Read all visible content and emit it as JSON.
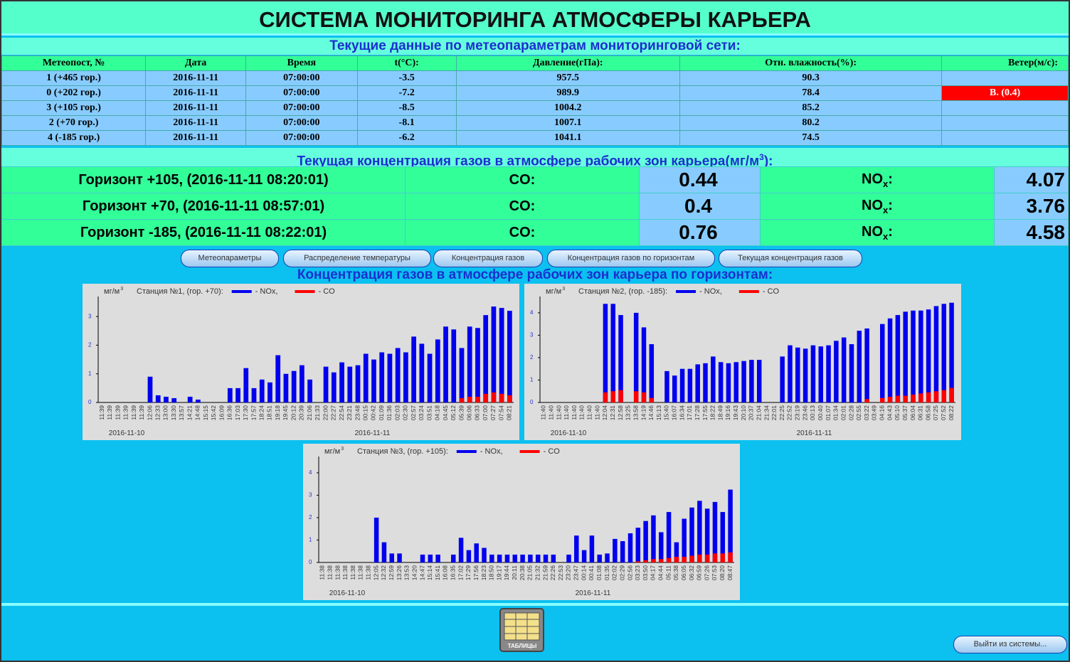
{
  "title": "СИСТЕМА МОНИТОРИНГА АТМОСФЕРЫ КАРЬЕРА",
  "meteo": {
    "heading": "Текущие данные по метеопараметрам мониторинговой сети:",
    "headers": [
      "Метеопост, №",
      "Дата",
      "Время",
      "t(°C):",
      "Давление(гПа):",
      "Отн. влажность(%):",
      "Ветер(м/с):"
    ],
    "rows": [
      {
        "cells": [
          "1 (+465 гор.)",
          "2016-11-11",
          "07:00:00",
          -3.5,
          957.5,
          90.3
        ]
      },
      {
        "cells": [
          "0 (+202 гор.)",
          "2016-11-11",
          "07:00:00",
          -7.2,
          989.9,
          78.4
        ],
        "wind": "В. (0.4)"
      },
      {
        "cells": [
          "3 (+105 гор.)",
          "2016-11-11",
          "07:00:00",
          -8.5,
          1004.2,
          85.2
        ]
      },
      {
        "cells": [
          "2 (+70 гор.)",
          "2016-11-11",
          "07:00:00",
          -8.1,
          1007.1,
          80.2
        ]
      },
      {
        "cells": [
          "4 (-185 гор.)",
          "2016-11-11",
          "07:00:00",
          -6.2,
          1041.1,
          74.5
        ]
      }
    ]
  },
  "gas": {
    "heading": "Текущая концентрация газов в атмосфере рабочих зон карьера(мг/м",
    "heading_sup": "3",
    "heading_end": "):",
    "co_label": "CO:",
    "nox_label": "NO",
    "nox_sub": "x",
    "nox_colon": ":",
    "rows": [
      {
        "label": "Горизонт +105, (2016-11-11 08:20:01)",
        "co": 0.44,
        "nox": 4.07
      },
      {
        "label": "Горизонт +70, (2016-11-11 08:57:01)",
        "co": 0.4,
        "nox": 3.76
      },
      {
        "label": "Горизонт -185, (2016-11-11 08:22:01)",
        "co": 0.76,
        "nox": 4.58
      }
    ]
  },
  "buttons": [
    "Метеопараметры",
    "Распределение температуры",
    "Концентрация газов",
    "Концентрация газов по горизонтам",
    "Текущая концентрация газов"
  ],
  "charts_heading": "Концентрация газов в атмосфере рабочих зон карьера по горизонтам:",
  "charts": [
    {
      "type": "bar",
      "unit": "мг/м",
      "unit_sup": "3",
      "station": "Станция №1, (гор. +70):",
      "ylim": [
        0,
        3.6
      ],
      "yticks": [
        0,
        1,
        2,
        3
      ],
      "dates": [
        "2016-11-10",
        "2016-11-11"
      ],
      "categories": [
        "11:39",
        "11:39",
        "11:39",
        "11:39",
        "11:39",
        "11:39",
        "12:06",
        "12:33",
        "13:00",
        "13:30",
        "13:57",
        "14:21",
        "14:48",
        "15:15",
        "15:42",
        "16:09",
        "16:36",
        "17:03",
        "17:30",
        "17:57",
        "18:24",
        "18:51",
        "19:18",
        "19:45",
        "20:12",
        "20:39",
        "21:06",
        "21:33",
        "22:00",
        "22:27",
        "22:54",
        "23:21",
        "23:48",
        "00:15",
        "00:42",
        "01:09",
        "01:36",
        "02:03",
        "02:30",
        "02:57",
        "03:24",
        "03:51",
        "04:18",
        "04:45",
        "05:12",
        "05:39",
        "06:06",
        "06:33",
        "07:00",
        "07:27",
        "07:54",
        "08:21"
      ],
      "series": [
        {
          "name": "- NOx,",
          "color": "#0000ee",
          "values": [
            0,
            0,
            0,
            0,
            0,
            0,
            0.9,
            0.25,
            0.2,
            0.15,
            0,
            0.2,
            0.1,
            0,
            0,
            0,
            0.5,
            0.5,
            1.2,
            0.5,
            0.8,
            0.7,
            1.65,
            1.0,
            1.1,
            1.3,
            0.8,
            0,
            1.25,
            1.05,
            1.4,
            1.25,
            1.3,
            1.7,
            1.5,
            1.75,
            1.7,
            1.9,
            1.75,
            2.3,
            2.05,
            1.7,
            2.2,
            2.65,
            2.55,
            1.9,
            2.65,
            2.6,
            3.05,
            3.35,
            3.3,
            3.2
          ]
        },
        {
          "name": "- CO",
          "color": "#ff0000",
          "values": [
            0,
            0,
            0,
            0,
            0,
            0,
            0,
            0,
            0,
            0,
            0,
            0,
            0,
            0,
            0,
            0,
            0,
            0,
            0,
            0,
            0,
            0,
            0,
            0,
            0,
            0,
            0,
            0,
            0,
            0,
            0,
            0,
            0,
            0,
            0,
            0,
            0,
            0,
            0,
            0,
            0,
            0,
            0,
            0,
            0,
            0.15,
            0.2,
            0.2,
            0.3,
            0.35,
            0.3,
            0.25
          ]
        }
      ]
    },
    {
      "type": "bar",
      "unit": "мг/м",
      "unit_sup": "3",
      "station": "Станция №2, (гор. -185):",
      "ylim": [
        0,
        4.6
      ],
      "yticks": [
        0,
        1,
        2,
        3,
        4
      ],
      "dates": [
        "2016-11-10",
        "2016-11-11"
      ],
      "categories": [
        "11:40",
        "11:40",
        "11:40",
        "11:40",
        "11:40",
        "11:40",
        "11:40",
        "11:40",
        "12:04",
        "12:31",
        "12:58",
        "13:25",
        "13:58",
        "14:19",
        "14:46",
        "15:13",
        "15:40",
        "16:07",
        "16:34",
        "17:01",
        "17:28",
        "17:55",
        "18:22",
        "18:49",
        "19:16",
        "19:43",
        "20:10",
        "20:37",
        "21:04",
        "21:34",
        "22:01",
        "22:25",
        "22:52",
        "23:19",
        "23:46",
        "00:13",
        "00:40",
        "01:07",
        "01:34",
        "02:01",
        "02:28",
        "02:55",
        "03:22",
        "03:49",
        "04:16",
        "04:43",
        "05:10",
        "05:37",
        "06:04",
        "06:31",
        "06:58",
        "07:25",
        "07:52",
        "08:22"
      ],
      "series": [
        {
          "name": "- NOx,",
          "color": "#0000ee",
          "values": [
            0,
            0,
            0,
            0,
            0,
            0,
            0,
            0,
            4.4,
            4.4,
            3.9,
            0,
            4.0,
            3.35,
            2.6,
            0,
            1.4,
            1.2,
            1.5,
            1.5,
            1.7,
            1.75,
            2.05,
            1.8,
            1.75,
            1.8,
            1.85,
            1.9,
            1.9,
            0,
            0,
            2.05,
            2.55,
            2.45,
            2.4,
            2.55,
            2.5,
            2.55,
            2.75,
            2.9,
            2.6,
            3.2,
            3.3,
            0,
            3.5,
            3.75,
            3.9,
            4.05,
            4.1,
            4.1,
            4.15,
            4.3,
            4.4,
            4.45
          ]
        },
        {
          "name": "- CO",
          "color": "#ff0000",
          "values": [
            0,
            0,
            0,
            0,
            0,
            0,
            0,
            0,
            0.45,
            0.5,
            0.55,
            0,
            0.5,
            0.45,
            0.2,
            0,
            0,
            0,
            0,
            0,
            0,
            0,
            0,
            0,
            0,
            0,
            0,
            0,
            0,
            0,
            0,
            0,
            0,
            0,
            0,
            0,
            0,
            0,
            0,
            0,
            0,
            0,
            0.15,
            0,
            0.2,
            0.25,
            0.3,
            0.3,
            0.35,
            0.4,
            0.45,
            0.5,
            0.55,
            0.65
          ]
        }
      ]
    },
    {
      "type": "bar",
      "unit": "мг/м",
      "unit_sup": "3",
      "station": "Станция №3, (гор. +105):",
      "ylim": [
        0,
        4.6
      ],
      "yticks": [
        0,
        1,
        2,
        3,
        4
      ],
      "dates": [
        "2016-11-10",
        "2016-11-11"
      ],
      "categories": [
        "11:38",
        "11:38",
        "11:38",
        "11:38",
        "11:38",
        "11:38",
        "11:38",
        "12:05",
        "12:32",
        "12:59",
        "13:26",
        "13:53",
        "14:20",
        "14:47",
        "15:14",
        "15:41",
        "16:08",
        "16:35",
        "17:02",
        "17:29",
        "17:56",
        "18:23",
        "18:50",
        "19:17",
        "19:44",
        "20:11",
        "20:38",
        "21:05",
        "21:32",
        "21:59",
        "22:26",
        "22:53",
        "23:20",
        "23:47",
        "00:14",
        "00:41",
        "01:08",
        "01:35",
        "02:02",
        "02:29",
        "02:56",
        "03:23",
        "03:50",
        "04:17",
        "04:44",
        "05:11",
        "05:38",
        "06:05",
        "06:32",
        "06:59",
        "07:26",
        "07:53",
        "08:20",
        "08:47"
      ],
      "series": [
        {
          "name": "- NOx,",
          "color": "#0000ee",
          "values": [
            0,
            0,
            0,
            0,
            0,
            0,
            0,
            2.0,
            0.9,
            0.4,
            0.4,
            0,
            0,
            0.35,
            0.35,
            0.35,
            0,
            0.35,
            1.1,
            0.55,
            0.85,
            0.65,
            0.35,
            0.35,
            0.35,
            0.35,
            0.35,
            0.35,
            0.35,
            0.35,
            0.35,
            0,
            0.35,
            1.2,
            0.55,
            1.2,
            0.35,
            0.4,
            1.05,
            0.95,
            1.3,
            1.55,
            1.85,
            2.1,
            1.35,
            2.25,
            0.9,
            1.95,
            2.45,
            2.75,
            2.4,
            2.7,
            2.25,
            3.25
          ]
        },
        {
          "name": "- CO",
          "color": "#ff0000",
          "values": [
            0,
            0,
            0,
            0,
            0,
            0,
            0,
            0,
            0,
            0,
            0,
            0,
            0,
            0,
            0,
            0,
            0,
            0,
            0,
            0,
            0,
            0,
            0,
            0,
            0,
            0,
            0,
            0,
            0,
            0,
            0,
            0,
            0,
            0,
            0,
            0,
            0,
            0,
            0,
            0,
            0,
            0.05,
            0.1,
            0.15,
            0.15,
            0.2,
            0.25,
            0.25,
            0.3,
            0.35,
            0.35,
            0.4,
            0.4,
            0.45
          ]
        }
      ]
    }
  ],
  "tables_icon": "ТАБЛИЦЫ",
  "exit_button": "Выйти из системы..."
}
